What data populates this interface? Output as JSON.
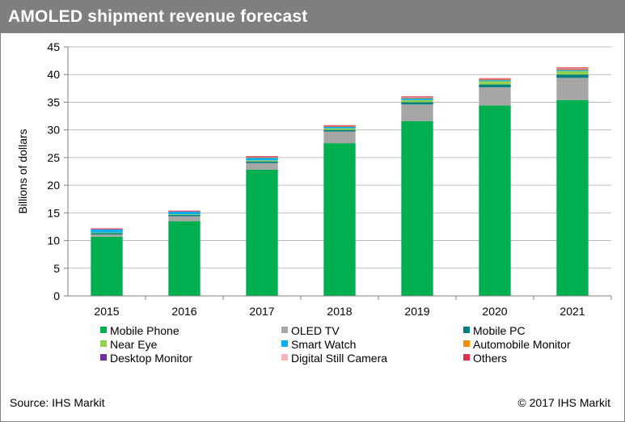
{
  "header": {
    "title": "AMOLED shipment revenue forecast"
  },
  "footer": {
    "source": "Source: IHS Markit",
    "copyright": "© 2017 IHS Markit"
  },
  "chart_data": {
    "type": "bar",
    "stacked": true,
    "title": "AMOLED shipment revenue forecast",
    "xlabel": "",
    "ylabel": "Billions of dollars",
    "ylim": [
      0,
      45
    ],
    "yticks": [
      "0",
      "5",
      "10",
      "15",
      "20",
      "25",
      "30",
      "35",
      "40",
      "45"
    ],
    "grid": "horizontal",
    "legend_position": "bottom",
    "categories": [
      "2015",
      "2016",
      "2017",
      "2018",
      "2019",
      "2020",
      "2021"
    ],
    "series": [
      {
        "name": "Mobile Phone",
        "color": "#00b050",
        "values": [
          10.7,
          13.5,
          22.8,
          27.6,
          31.6,
          34.4,
          35.4
        ]
      },
      {
        "name": "OLED TV",
        "color": "#a6a6a6",
        "values": [
          0.4,
          0.9,
          1.2,
          2.1,
          3.0,
          3.3,
          4.0
        ]
      },
      {
        "name": "Mobile PC",
        "color": "#008080",
        "values": [
          0.25,
          0.25,
          0.3,
          0.3,
          0.4,
          0.5,
          0.6
        ]
      },
      {
        "name": "Near Eye",
        "color": "#92d050",
        "values": [
          0.1,
          0.1,
          0.2,
          0.3,
          0.4,
          0.6,
          0.6
        ]
      },
      {
        "name": "Smart Watch",
        "color": "#00b0f0",
        "values": [
          0.6,
          0.5,
          0.5,
          0.3,
          0.3,
          0.2,
          0.2
        ]
      },
      {
        "name": "Automobile Monitor",
        "color": "#ff8c00",
        "values": [
          0.0,
          0.0,
          0.05,
          0.05,
          0.1,
          0.1,
          0.15
        ]
      },
      {
        "name": "Desktop Monitor",
        "color": "#7030a0",
        "values": [
          0.05,
          0.05,
          0.1,
          0.1,
          0.1,
          0.1,
          0.15
        ]
      },
      {
        "name": "Digital Still Camera",
        "color": "#f4b8b8",
        "values": [
          0.05,
          0.05,
          0.05,
          0.05,
          0.05,
          0.05,
          0.05
        ]
      },
      {
        "name": "Others",
        "color": "#e0304a",
        "values": [
          0.05,
          0.05,
          0.05,
          0.05,
          0.1,
          0.1,
          0.15
        ]
      }
    ]
  }
}
